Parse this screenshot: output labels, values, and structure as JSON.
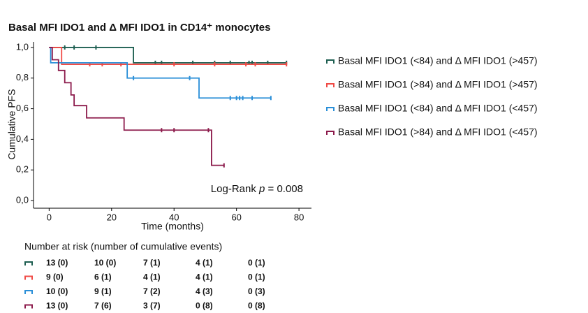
{
  "chart_data": {
    "type": "km",
    "title": "Basal MFI IDO1 and Δ MFI IDO1 in CD14⁺ monocytes",
    "xlabel": "Time (months)",
    "ylabel": "Cumulative PFS",
    "xlim": [
      -5,
      84
    ],
    "xticks": [
      0,
      20,
      40,
      60,
      80
    ],
    "ylim": [
      -0.05,
      1.05
    ],
    "yticks": [
      {
        "value": 0,
        "label": "0,0"
      },
      {
        "value": 0.2,
        "label": "0,2"
      },
      {
        "value": 0.4,
        "label": "0,4"
      },
      {
        "value": 0.6,
        "label": "0,6"
      },
      {
        "value": 0.8,
        "label": "0,8"
      },
      {
        "value": 1,
        "label": "1,0"
      }
    ],
    "annotation_prefix": "Log-Rank ",
    "annotation_p": "p",
    "annotation_rest": " = 0.008",
    "series": [
      {
        "name": "Basal MFI IDO1 (<84) and Δ MFI IDO1 (>457)",
        "color": "#1d5e50",
        "x": [
          0,
          27,
          76
        ],
        "values": [
          1.0,
          0.9,
          0.9
        ],
        "censor_x": [
          5,
          8,
          15,
          34,
          36,
          46,
          53,
          58,
          64,
          65,
          70,
          76
        ],
        "censor_values": [
          1.0,
          1.0,
          1.0,
          0.9,
          0.9,
          0.9,
          0.9,
          0.9,
          0.9,
          0.9,
          0.9,
          0.9
        ]
      },
      {
        "name": "Basal MFI IDO1 (>84) and Δ MFI IDO1 (>457)",
        "color": "#f04a45",
        "x": [
          0,
          4,
          76
        ],
        "values": [
          1.0,
          0.89,
          0.89
        ],
        "censor_x": [
          13,
          17,
          23,
          40,
          53,
          63,
          66,
          76
        ],
        "censor_values": [
          0.89,
          0.89,
          0.89,
          0.89,
          0.89,
          0.89,
          0.89,
          0.89
        ]
      },
      {
        "name": "Basal MFI IDO1 (<84) and Δ MFI IDO1 (<457)",
        "color": "#2a8fd8",
        "x": [
          0,
          0.5,
          25,
          48,
          71
        ],
        "values": [
          1.0,
          0.9,
          0.8,
          0.67,
          0.67
        ],
        "censor_x": [
          27,
          45,
          58,
          60,
          61,
          62,
          65,
          71
        ],
        "censor_values": [
          0.8,
          0.8,
          0.67,
          0.67,
          0.67,
          0.67,
          0.67,
          0.67
        ]
      },
      {
        "name": "Basal MFI IDO1 (>84) and Δ MFI IDO1 (<457)",
        "color": "#8c1a4b",
        "x": [
          0,
          1,
          3,
          5,
          7,
          8,
          12,
          24,
          52,
          56
        ],
        "values": [
          1.0,
          0.92,
          0.85,
          0.77,
          0.69,
          0.62,
          0.54,
          0.46,
          0.23,
          0.23
        ],
        "censor_x": [
          36,
          40,
          51,
          56
        ],
        "censor_values": [
          0.46,
          0.46,
          0.46,
          0.23
        ]
      }
    ],
    "risk_table": {
      "title": "Number at risk (number of cumulative events)",
      "rows": [
        [
          "13 (0)",
          "10 (0)",
          "7 (1)",
          "4 (1)",
          "0 (1)"
        ],
        [
          "9 (0)",
          "6 (1)",
          "4 (1)",
          "4 (1)",
          "0 (1)"
        ],
        [
          "10 (0)",
          "9 (1)",
          "7 (2)",
          "4 (3)",
          "0 (3)"
        ],
        [
          "13 (0)",
          "7 (6)",
          "3 (7)",
          "0 (8)",
          "0 (8)"
        ]
      ]
    }
  }
}
